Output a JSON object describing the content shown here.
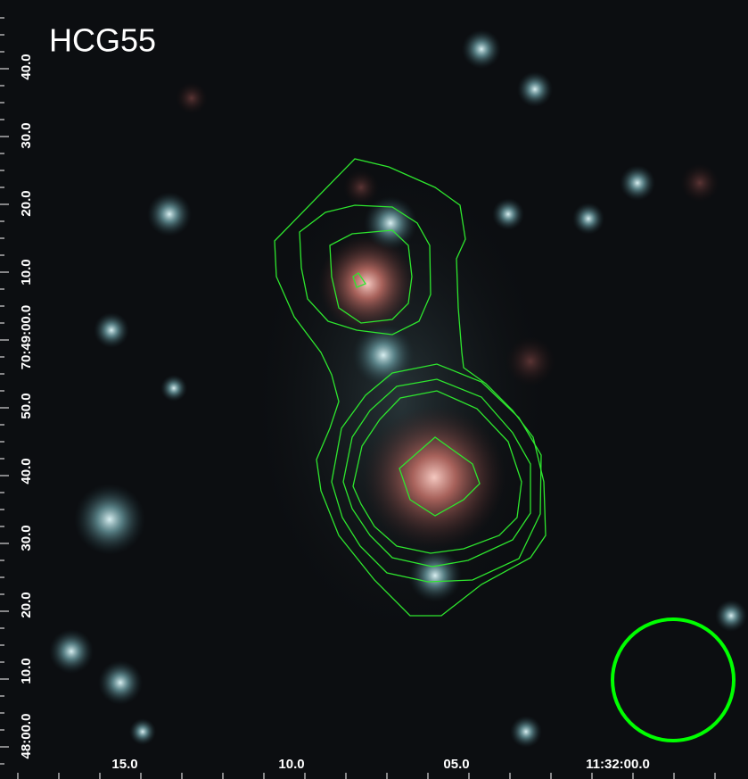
{
  "title": "HCG55",
  "y_axis_labels": [
    "40.0",
    "30.0",
    "20.0",
    "10.0",
    "70:49:00.0",
    "50.0",
    "40.0",
    "30.0",
    "20.0",
    "10.0",
    "48:00.0"
  ],
  "x_axis_labels": [
    "15.0",
    "10.0",
    "05.0",
    "11:32:00.0"
  ]
}
